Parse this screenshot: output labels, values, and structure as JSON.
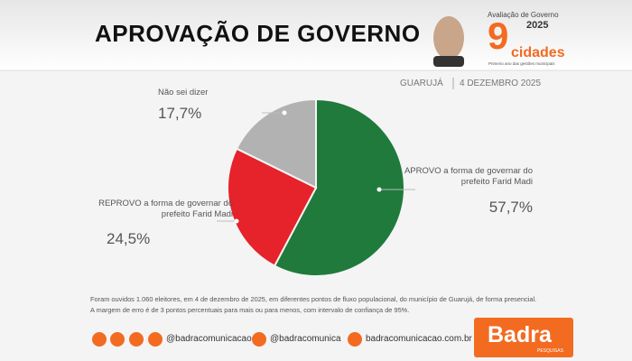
{
  "header": {
    "title": "APROVAÇÃO DE GOVERNO",
    "badge": {
      "line1": "Avaliação de Governo",
      "year": "2025",
      "number": "9",
      "word": "cidades",
      "tagline": "Primeiro ano das gestões municipais"
    },
    "location": "GUARUJÁ",
    "date": "4 DEZEMBRO 2025"
  },
  "chart_data": {
    "type": "pie",
    "categories": [
      "APROVO a forma de governar do prefeito Farid Madi",
      "REPROVO a forma de governar do prefeito Farid Madi",
      "Não sei dizer"
    ],
    "values": [
      57.7,
      24.5,
      17.7
    ],
    "value_labels": [
      "57,7%",
      "24,5%",
      "17,7%"
    ],
    "colors": [
      "#1f7a3c",
      "#e6222a",
      "#b2b2b2"
    ]
  },
  "footer": {
    "note": [
      "Foram ouvidos 1.060 eleitores, em 4 de dezembro de 2025, em diferentes pontos de fluxo populacional, do município de Guarujá, de forma presencial.",
      "A margem de erro é de 3 pontos percentuais para mais ou para menos, com intervalo de confiança de 95%."
    ],
    "socials": [
      "@badracomunicacao",
      "@badracomunica",
      "badracomunicacao.com.br"
    ],
    "brand": "Badra",
    "brand_sub": "PESQUISAS"
  }
}
